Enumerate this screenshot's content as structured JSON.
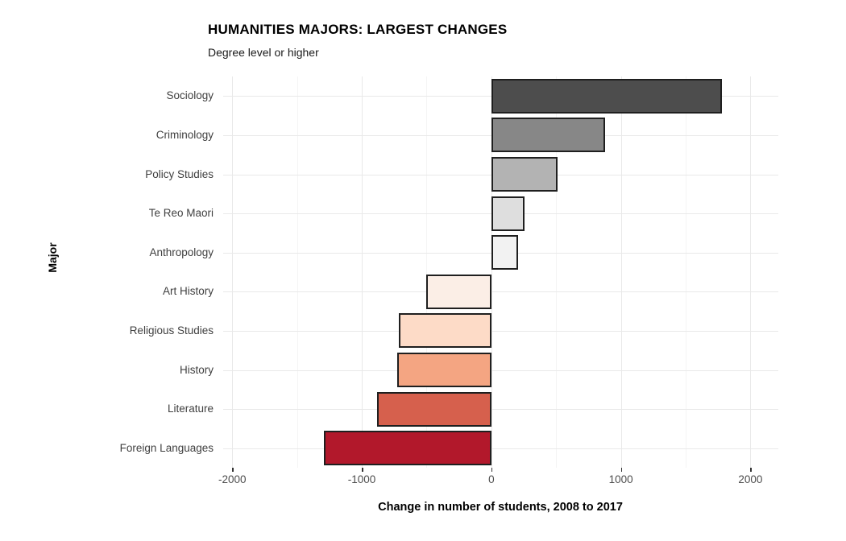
{
  "chart_data": {
    "type": "bar",
    "orientation": "horizontal",
    "title": "HUMANITIES MAJORS: LARGEST CHANGES",
    "subtitle": "Degree level or higher",
    "xlabel": "Change in number of students, 2008 to 2017",
    "ylabel": "Major",
    "categories": [
      "Sociology",
      "Criminology",
      "Policy Studies",
      "Te Reo Maori",
      "Anthropology",
      "Art History",
      "Religious Studies",
      "History",
      "Literature",
      "Foreign Languages"
    ],
    "values": [
      1780,
      880,
      510,
      255,
      205,
      -500,
      -715,
      -725,
      -880,
      -1290
    ],
    "bar_colors": [
      "#4d4d4d",
      "#878787",
      "#b3b3b3",
      "#dedede",
      "#f2f2f2",
      "#fbeee6",
      "#fddbc7",
      "#f4a582",
      "#d6604d",
      "#b2182b"
    ],
    "bar_border_color": "#1f1f1f",
    "xlim": [
      -2070,
      2215
    ],
    "x_major_ticks": [
      -2000,
      -1000,
      0,
      1000,
      2000
    ],
    "x_major_tick_labels": [
      "-2000",
      "-1000",
      "0",
      "1000",
      "2000"
    ],
    "x_minor_ticks": [
      -1500,
      -500,
      500,
      1500
    ],
    "grid": "on",
    "legend": "none"
  },
  "style": {
    "grid_major_color": "#e9e9e9",
    "grid_minor_color": "#f4f4f4",
    "axis_text_color": "#4d4d4d",
    "background_color": "#ffffff"
  }
}
